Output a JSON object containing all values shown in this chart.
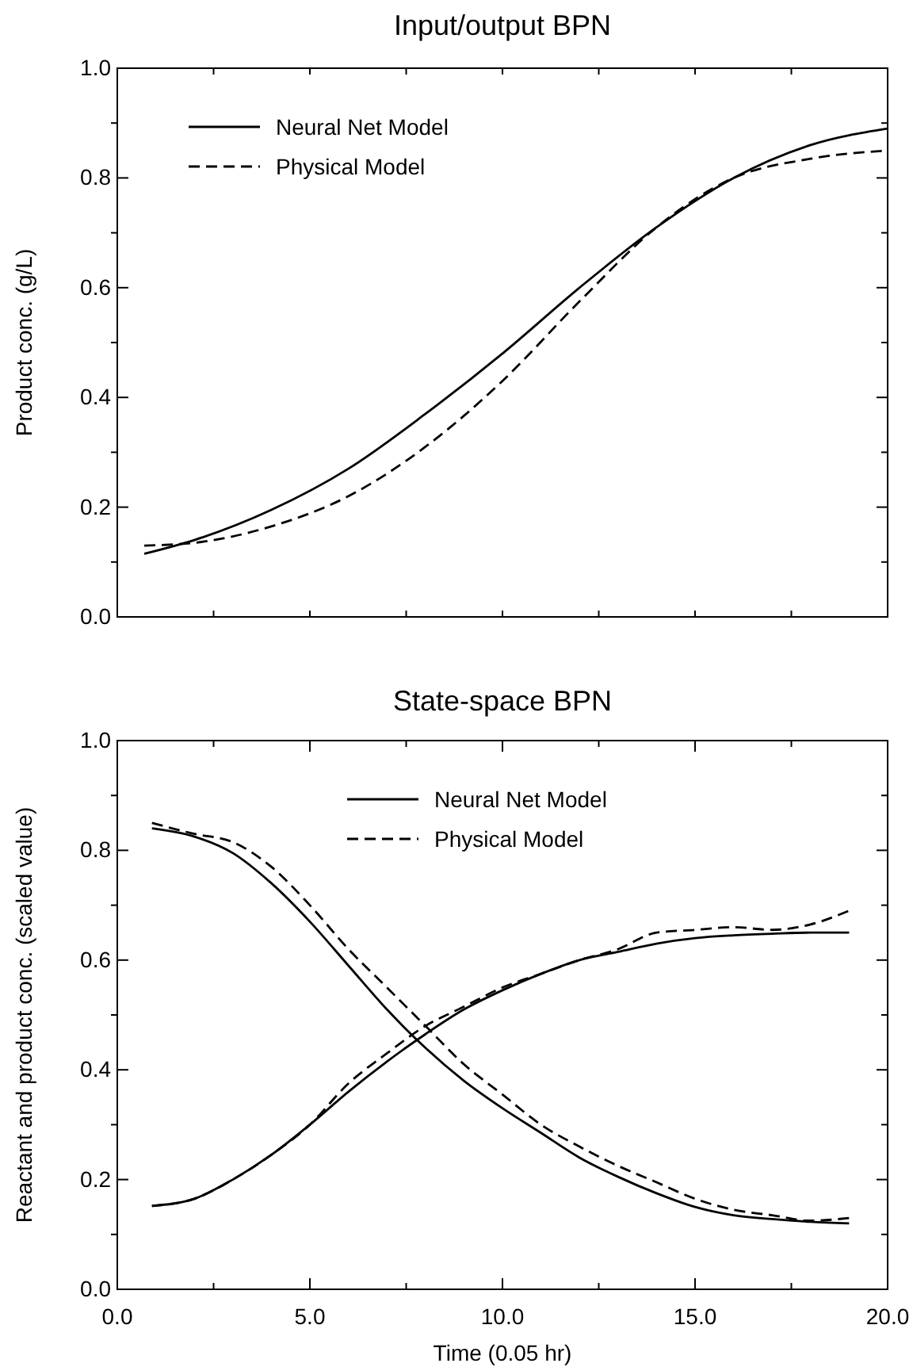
{
  "chart_data": [
    {
      "type": "line",
      "title": "Input/output BPN",
      "ylabel": "Product conc. (g/L)",
      "xlim": [
        0,
        20
      ],
      "ylim": [
        0,
        1
      ],
      "xticks": [
        {
          "value": 0,
          "label": null
        },
        {
          "value": 2.5,
          "label": null
        },
        {
          "value": 5,
          "label": null
        },
        {
          "value": 7.5,
          "label": null
        },
        {
          "value": 10,
          "label": null
        },
        {
          "value": 12.5,
          "label": null
        },
        {
          "value": 15,
          "label": null
        },
        {
          "value": 17.5,
          "label": null
        },
        {
          "value": 20,
          "label": null
        }
      ],
      "yticks": [
        {
          "value": 0,
          "label": "0.0"
        },
        {
          "value": 0.1,
          "label": null
        },
        {
          "value": 0.2,
          "label": "0.2"
        },
        {
          "value": 0.3,
          "label": null
        },
        {
          "value": 0.4,
          "label": "0.4"
        },
        {
          "value": 0.5,
          "label": null
        },
        {
          "value": 0.6,
          "label": "0.6"
        },
        {
          "value": 0.7,
          "label": null
        },
        {
          "value": 0.8,
          "label": "0.8"
        },
        {
          "value": 0.9,
          "label": null
        },
        {
          "value": 1,
          "label": "1.0"
        }
      ],
      "tick_labels": "y",
      "legend": "top left",
      "grid": false,
      "marker": "none",
      "series": [
        {
          "name": "Neural Net Model",
          "color": "#000000",
          "line_style": "solid",
          "x": [
            0.7,
            2,
            4,
            6,
            8,
            10,
            12,
            14,
            16,
            18,
            20
          ],
          "values": [
            0.115,
            0.14,
            0.195,
            0.27,
            0.37,
            0.48,
            0.6,
            0.71,
            0.8,
            0.86,
            0.89
          ]
        },
        {
          "name": "Physical Model",
          "color": "#000000",
          "line_style": "dashed",
          "x": [
            0.7,
            2,
            4,
            6,
            8,
            10,
            12,
            14,
            16,
            18,
            20
          ],
          "values": [
            0.13,
            0.135,
            0.165,
            0.22,
            0.31,
            0.43,
            0.575,
            0.71,
            0.8,
            0.835,
            0.85
          ]
        }
      ]
    },
    {
      "type": "line",
      "title": "State-space BPN",
      "xlabel": "Time (0.05 hr)",
      "ylabel": "Reactant and product conc. (scaled value)",
      "xlim": [
        0,
        20
      ],
      "ylim": [
        0,
        1
      ],
      "xticks": [
        {
          "value": 0,
          "label": "0.0"
        },
        {
          "value": 2.5,
          "label": null
        },
        {
          "value": 5,
          "label": "5.0"
        },
        {
          "value": 7.5,
          "label": null
        },
        {
          "value": 10,
          "label": "10.0"
        },
        {
          "value": 12.5,
          "label": null
        },
        {
          "value": 15,
          "label": "15.0"
        },
        {
          "value": 17.5,
          "label": null
        },
        {
          "value": 20,
          "label": "20.0"
        }
      ],
      "yticks": [
        {
          "value": 0,
          "label": "0.0"
        },
        {
          "value": 0.1,
          "label": null
        },
        {
          "value": 0.2,
          "label": "0.2"
        },
        {
          "value": 0.3,
          "label": null
        },
        {
          "value": 0.4,
          "label": "0.4"
        },
        {
          "value": 0.5,
          "label": null
        },
        {
          "value": 0.6,
          "label": "0.6"
        },
        {
          "value": 0.7,
          "label": null
        },
        {
          "value": 0.8,
          "label": "0.8"
        },
        {
          "value": 0.9,
          "label": null
        },
        {
          "value": 1,
          "label": "1.0"
        }
      ],
      "legend": "top",
      "grid": false,
      "marker": "none",
      "series": [
        {
          "name": "Neural Net Model",
          "color": "#000000",
          "line_style": "solid",
          "x": [
            0.9,
            2,
            3,
            4,
            5,
            6,
            7,
            8,
            9,
            10,
            11,
            12,
            13,
            14,
            15,
            16,
            17,
            18,
            19
          ],
          "values": [
            0.84,
            0.825,
            0.795,
            0.74,
            0.67,
            0.59,
            0.51,
            0.44,
            0.38,
            0.33,
            0.285,
            0.24,
            0.205,
            0.175,
            0.15,
            0.135,
            0.128,
            0.123,
            0.12
          ]
        },
        {
          "name": "Physical Model",
          "color": "#000000",
          "line_style": "dashed",
          "x": [
            0.9,
            2,
            3,
            4,
            5,
            6,
            7,
            8,
            9,
            10,
            11,
            12,
            13,
            14,
            15,
            16,
            17,
            18,
            19
          ],
          "values": [
            0.85,
            0.83,
            0.815,
            0.77,
            0.7,
            0.62,
            0.55,
            0.48,
            0.41,
            0.355,
            0.3,
            0.26,
            0.225,
            0.195,
            0.165,
            0.145,
            0.135,
            0.125,
            0.13
          ]
        },
        {
          "color": "#000000",
          "line_style": "solid",
          "x": [
            0.9,
            2,
            3,
            4,
            5,
            6,
            7,
            8,
            9,
            10,
            11,
            12,
            13,
            14,
            15,
            16,
            17,
            18,
            19
          ],
          "values": [
            0.152,
            0.165,
            0.2,
            0.245,
            0.3,
            0.36,
            0.415,
            0.465,
            0.51,
            0.545,
            0.575,
            0.6,
            0.615,
            0.63,
            0.64,
            0.645,
            0.648,
            0.65,
            0.65
          ]
        },
        {
          "color": "#000000",
          "line_style": "dashed",
          "x": [
            0.9,
            2,
            3,
            4,
            5,
            6,
            7,
            8,
            9,
            10,
            11,
            12,
            13,
            14,
            15,
            16,
            17,
            18,
            19
          ],
          "values": [
            0.152,
            0.165,
            0.2,
            0.245,
            0.3,
            0.375,
            0.43,
            0.48,
            0.515,
            0.55,
            0.575,
            0.6,
            0.62,
            0.65,
            0.655,
            0.66,
            0.655,
            0.665,
            0.69
          ]
        }
      ]
    }
  ]
}
